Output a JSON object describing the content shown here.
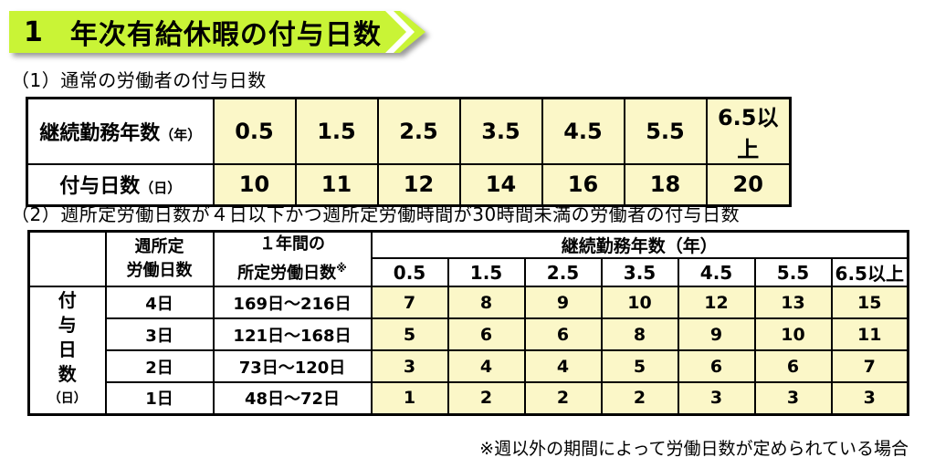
{
  "banner": {
    "number": "1",
    "title": "年次有給休暇の付与日数",
    "color": "#C9F436"
  },
  "section1": {
    "heading": "（1）通常の労働者の付与日数",
    "table": {
      "row1_label": "継続勤務年数",
      "row1_unit": "（年）",
      "row2_label": "付与日数",
      "row2_unit": "（日）",
      "years": [
        "0.5",
        "1.5",
        "2.5",
        "3.5",
        "4.5",
        "5.5",
        "6.5以上"
      ],
      "days": [
        "10",
        "11",
        "12",
        "14",
        "16",
        "18",
        "20"
      ]
    }
  },
  "section2": {
    "heading": "（2）週所定労働日数が４日以下かつ週所定労働時間が30時間未満の労働者の付与日数",
    "table": {
      "weekly_header_line1": "週所定",
      "weekly_header_line2": "労働日数",
      "annual_header_line1": "１年間の",
      "annual_header_line2": "所定労働日数",
      "annual_header_note_marker": "※",
      "span_header": "継続勤務年数（年）",
      "years": [
        "0.5",
        "1.5",
        "2.5",
        "3.5",
        "4.5",
        "5.5",
        "6.5以上"
      ],
      "left_header": {
        "chars": [
          "付",
          "与",
          "日",
          "数"
        ],
        "unit": "（日）"
      },
      "rows": [
        {
          "week_days": "4日",
          "annual_range": "169日～216日",
          "values": [
            "7",
            "8",
            "9",
            "10",
            "12",
            "13",
            "15"
          ]
        },
        {
          "week_days": "3日",
          "annual_range": "121日～168日",
          "values": [
            "5",
            "6",
            "6",
            "8",
            "9",
            "10",
            "11"
          ]
        },
        {
          "week_days": "2日",
          "annual_range": "73日～120日",
          "values": [
            "3",
            "4",
            "4",
            "5",
            "6",
            "6",
            "7"
          ]
        },
        {
          "week_days": "1日",
          "annual_range": "48日～72日",
          "values": [
            "1",
            "2",
            "2",
            "2",
            "3",
            "3",
            "3"
          ]
        }
      ]
    }
  },
  "footnote": "※週以外の期間によって労働日数が定められている場合",
  "colors": {
    "banner_green": "#C9F436",
    "cell_yellow": "#FBF7C8",
    "border": "#000000",
    "text": "#000000",
    "background": "#FFFFFF"
  }
}
